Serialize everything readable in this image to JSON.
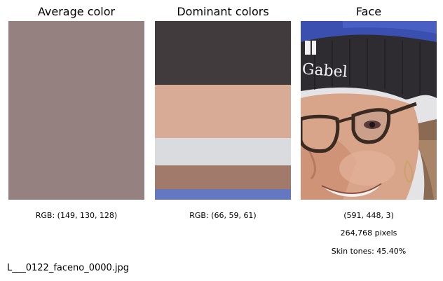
{
  "panels": {
    "average": {
      "title": "Average color",
      "color": "#958280",
      "caption": "RGB: (149, 130, 128)"
    },
    "dominant": {
      "title": "Dominant colors",
      "bands": [
        {
          "color": "#423b3d",
          "fraction": 0.357
        },
        {
          "color": "#d8ab96",
          "fraction": 0.298
        },
        {
          "color": "#d9dbdf",
          "fraction": 0.153
        },
        {
          "color": "#a27a6c",
          "fraction": 0.133
        },
        {
          "color": "#6377c3",
          "fraction": 0.059
        }
      ],
      "caption": "RGB: (66, 59, 61)"
    },
    "face": {
      "title": "Face",
      "hat_text": "Gabel",
      "shape": "(591, 448, 3)",
      "pixels": "264,768 pixels",
      "skin": "Skin tones: 45.40%"
    }
  },
  "filename": "L___0122_faceno_0000.jpg"
}
